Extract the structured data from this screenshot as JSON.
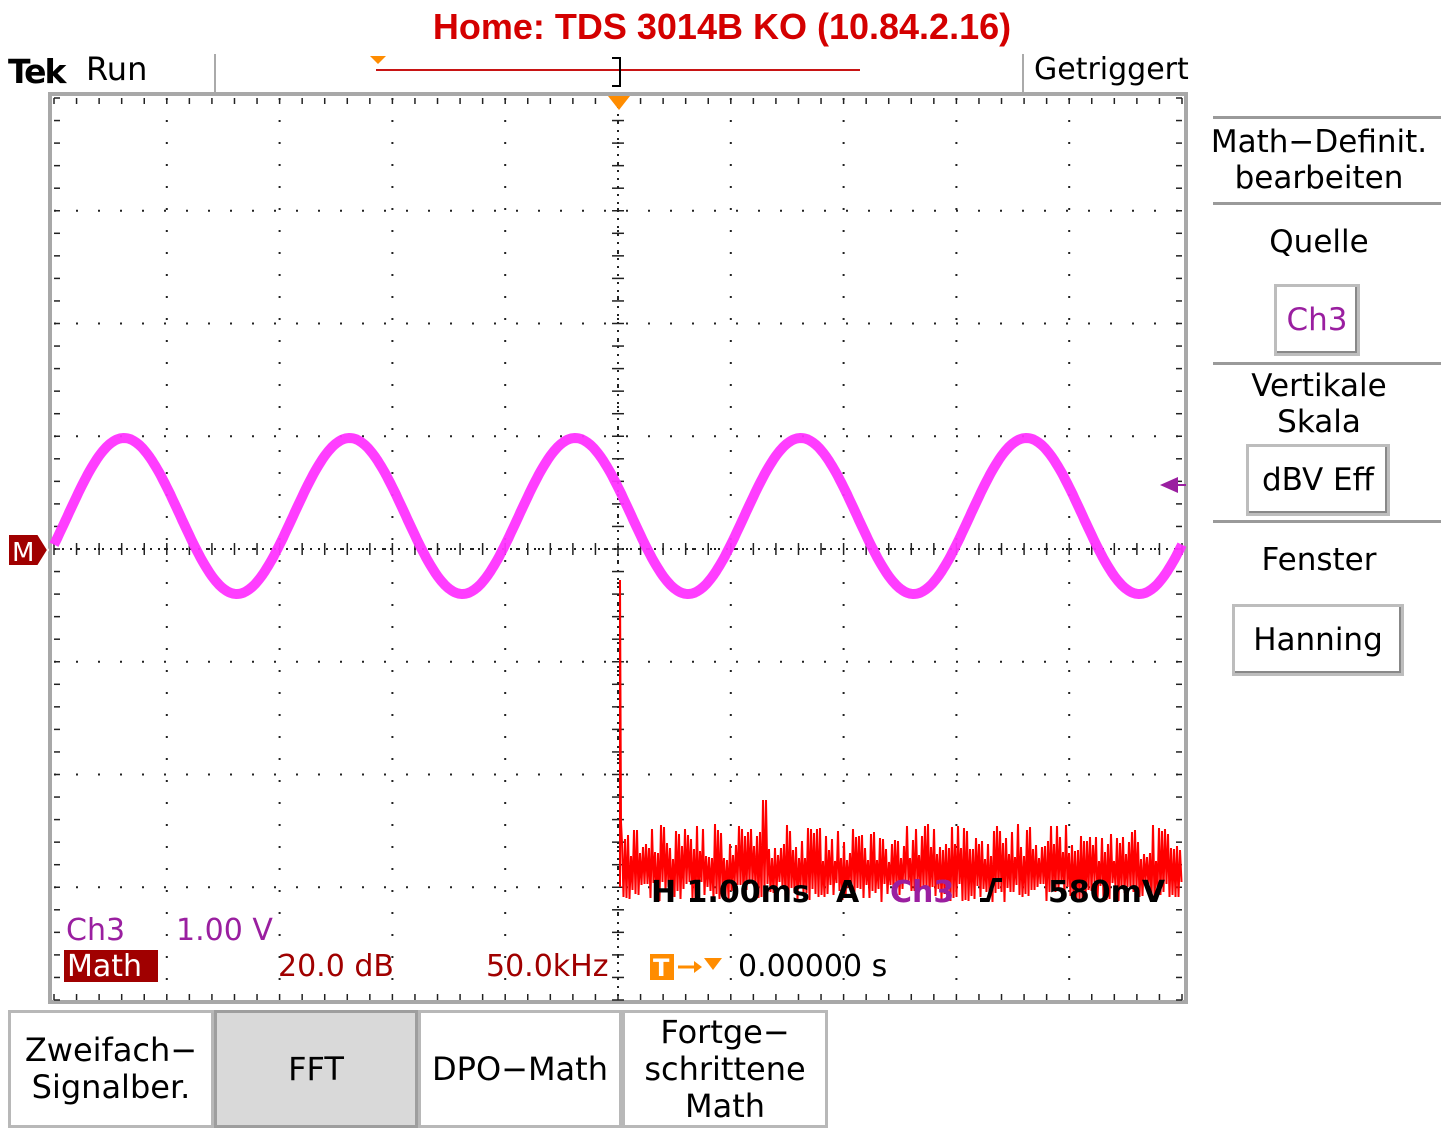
{
  "header": {
    "title": "Home:  TDS 3014B  KO  (10.84.2.16)",
    "brand": "Tek",
    "run_state": "Run",
    "trigger_status": "Getriggert"
  },
  "right_menu": {
    "heading_line1": "Math−Definit.",
    "heading_line2": "bearbeiten",
    "source_label": "Quelle",
    "source_value": "Ch3",
    "vscale_label_line1": "Vertikale",
    "vscale_label_line2": "Skala",
    "vscale_value": "dBV Eff",
    "window_label": "Fenster",
    "window_value": "Hanning"
  },
  "bottom_menu": {
    "items": [
      {
        "label": "Zweifach−\nSignalber."
      },
      {
        "label": "FFT"
      },
      {
        "label": "DPO−Math"
      },
      {
        "label": "Fortge−\nschrittene\nMath"
      }
    ],
    "active_index": 1
  },
  "readouts": {
    "ch3_name": "Ch3",
    "ch3_scale": "1.00 V",
    "math_name": "Math",
    "math_scale": "20.0 dB",
    "math_span": "50.0kHz",
    "trigger_delay": "0.00000 s",
    "timebase": "H 1.00ms",
    "trigger_mode": "A",
    "trigger_source": "Ch3",
    "trigger_level": "580mV",
    "math_marker": "M"
  },
  "colors": {
    "ch3": "#ff33ff",
    "ch3_text": "#9a1fa0",
    "math": "#ff0000",
    "math_label_bg": "#a00000",
    "trigger_marker": "#ff8c00",
    "grid": "#000000"
  }
}
